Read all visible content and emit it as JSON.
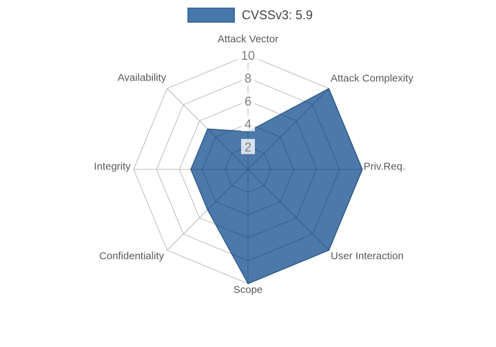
{
  "legend": {
    "label": "CVSSv3: 5.9"
  },
  "chart_data": {
    "type": "radar",
    "title": "",
    "categories": [
      "Attack Vector",
      "Attack Complexity",
      "Priv.Req.",
      "User Interaction",
      "Scope",
      "Confidentiality",
      "Integrity",
      "Availability"
    ],
    "series": [
      {
        "name": "CVSSv3: 5.9",
        "values": [
          3.3,
          10,
          10,
          10,
          10,
          5,
          5,
          5
        ]
      }
    ],
    "radial_ticks": [
      2,
      4,
      6,
      8,
      10
    ],
    "rlim": [
      0,
      10
    ],
    "grid": true,
    "grid_shape": "spider-web-octagon",
    "legend_position": "top-center",
    "axis_order": "clockwise-from-top",
    "colors": {
      "series_fill": "#3e6fa4",
      "series_edge": "#2d5986",
      "grid": "#b9b9b9",
      "grid_inside_fill": "rgba(20,40,75,0.30)",
      "axis_label": "#595959",
      "tick_label": "#808080",
      "tick_box": "rgba(255,255,255,0.78)",
      "legend_text": "#444444",
      "background": "#ffffff"
    }
  }
}
